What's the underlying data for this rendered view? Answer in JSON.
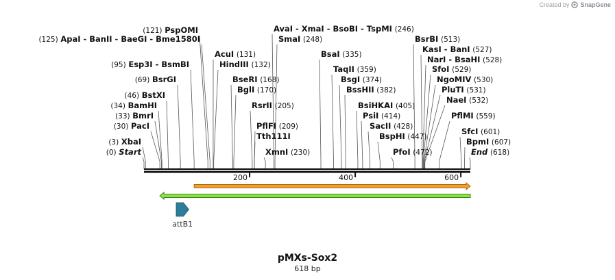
{
  "credit": {
    "prefix": "Created by",
    "brand": "SnapGene"
  },
  "plasmid": {
    "name": "pMXs-Sox2",
    "length_label": "618 bp",
    "length_bp": 618
  },
  "sites": [
    {
      "name": "Start",
      "pos": 0,
      "pos_label": "(0)",
      "italic": true
    },
    {
      "name": "XbaI",
      "pos": 3,
      "pos_label": "(3)"
    },
    {
      "name": "PacI",
      "pos": 30,
      "pos_label": "(30)"
    },
    {
      "name": "BmrI",
      "pos": 33,
      "pos_label": "(33)"
    },
    {
      "name": "BamHI",
      "pos": 34,
      "pos_label": "(34)"
    },
    {
      "name": "BstXI",
      "pos": 46,
      "pos_label": "(46)"
    },
    {
      "name": "BsrGI",
      "pos": 69,
      "pos_label": "(69)"
    },
    {
      "name": "Esp3I  -  BsmBI",
      "pos": 95,
      "pos_label": "(95)"
    },
    {
      "name": "PspOMI",
      "pos": 121,
      "pos_label": "(121)"
    },
    {
      "name": "ApaI  -  BanII  -  BaeGI  -  Bme1580I",
      "pos": 125,
      "pos_label": "(125)"
    },
    {
      "name": "AcuI",
      "pos": 131,
      "pos_label": "(131)"
    },
    {
      "name": "HindIII",
      "pos": 132,
      "pos_label": "(132)"
    },
    {
      "name": "BseRI",
      "pos": 168,
      "pos_label": "(168)"
    },
    {
      "name": "BglI",
      "pos": 170,
      "pos_label": "(170)"
    },
    {
      "name": "RsrII",
      "pos": 205,
      "pos_label": "(205)"
    },
    {
      "name": "PflFI",
      "pos": 209,
      "pos_label": "(209)"
    },
    {
      "name": "Tth111I",
      "pos": 209,
      "pos_label": ""
    },
    {
      "name": "XmnI",
      "pos": 230,
      "pos_label": "(230)"
    },
    {
      "name": "AvaI  -  XmaI  -  BsoBI  -  TspMI",
      "pos": 246,
      "pos_label": "(246)"
    },
    {
      "name": "SmaI",
      "pos": 248,
      "pos_label": "(248)"
    },
    {
      "name": "BsaI",
      "pos": 335,
      "pos_label": "(335)"
    },
    {
      "name": "TaqII",
      "pos": 359,
      "pos_label": "(359)"
    },
    {
      "name": "BsgI",
      "pos": 374,
      "pos_label": "(374)"
    },
    {
      "name": "BssHII",
      "pos": 382,
      "pos_label": "(382)"
    },
    {
      "name": "BsiHKAI",
      "pos": 405,
      "pos_label": "(405)"
    },
    {
      "name": "PsiI",
      "pos": 414,
      "pos_label": "(414)"
    },
    {
      "name": "SacII",
      "pos": 428,
      "pos_label": "(428)"
    },
    {
      "name": "BspHI",
      "pos": 447,
      "pos_label": "(447)"
    },
    {
      "name": "PfoI",
      "pos": 472,
      "pos_label": "(472)"
    },
    {
      "name": "BsrBI",
      "pos": 513,
      "pos_label": "(513)"
    },
    {
      "name": "KasI  -  BanI",
      "pos": 527,
      "pos_label": "(527)"
    },
    {
      "name": "NarI  -  BsaHI",
      "pos": 528,
      "pos_label": "(528)"
    },
    {
      "name": "SfoI",
      "pos": 529,
      "pos_label": "(529)"
    },
    {
      "name": "NgoMIV",
      "pos": 530,
      "pos_label": "(530)"
    },
    {
      "name": "PluTI",
      "pos": 531,
      "pos_label": "(531)"
    },
    {
      "name": "NaeI",
      "pos": 532,
      "pos_label": "(532)"
    },
    {
      "name": "PflMI",
      "pos": 559,
      "pos_label": "(559)"
    },
    {
      "name": "SfcI",
      "pos": 601,
      "pos_label": "(601)"
    },
    {
      "name": "BpmI",
      "pos": 607,
      "pos_label": "(607)"
    },
    {
      "name": "End",
      "pos": 618,
      "pos_label": "(618)",
      "italic": true
    }
  ],
  "ruler": {
    "ticks": [
      200,
      400,
      600
    ],
    "tick_labels": [
      "200",
      "400",
      "600"
    ]
  },
  "features": [
    {
      "name": "orange-feature",
      "start": 95,
      "end": 618,
      "color": "#f0a030",
      "border": "#b06a10",
      "direction": "forward"
    },
    {
      "name": "green-feature",
      "start": 30,
      "end": 618,
      "color": "#8ee04a",
      "border": "#3a8a10",
      "direction": "reverse"
    },
    {
      "name": "attB1",
      "label": "attB1",
      "start": 61,
      "end": 85,
      "color": "#2b7d99",
      "direction": "forward"
    }
  ],
  "colors": {
    "backbone": "#111111",
    "line": "#555555",
    "text": "#111111"
  }
}
